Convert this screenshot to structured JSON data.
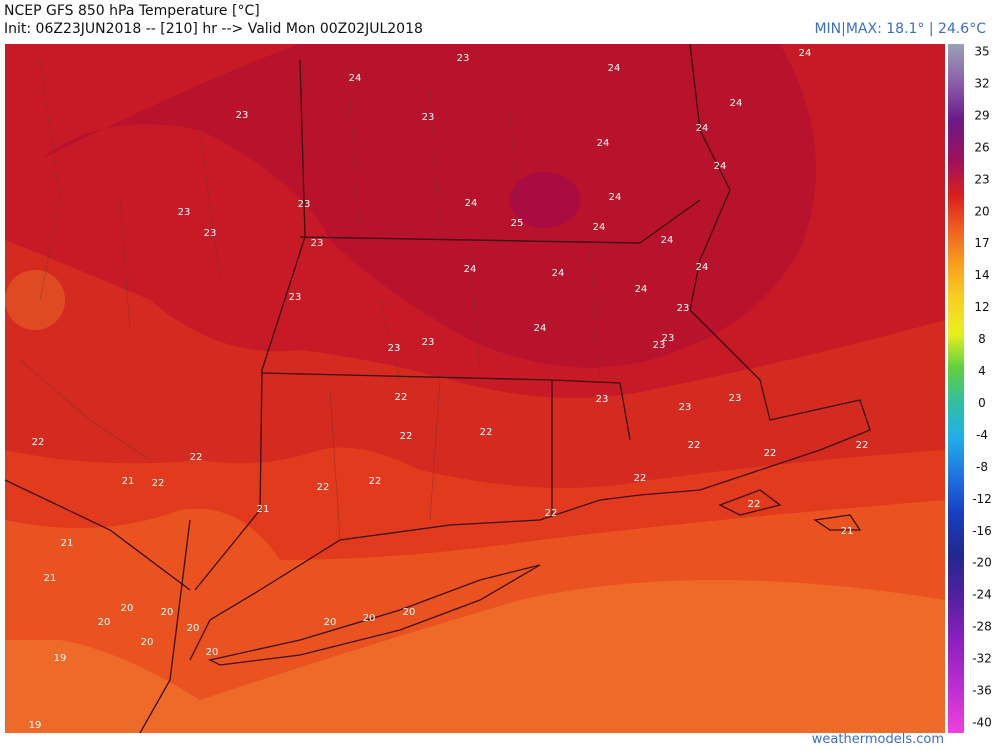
{
  "header": {
    "title": "NCEP GFS 850 hPa Temperature [°C]",
    "init": "Init: 06Z23JUN2018 -- [210] hr --> Valid Mon 00Z02JUL2018",
    "minmax": "MIN|MAX: 18.1° | 24.6°C"
  },
  "colorbar": {
    "ticks": [
      35,
      32,
      29,
      26,
      23,
      20,
      17,
      14,
      12,
      8,
      4,
      0,
      -4,
      -8,
      -12,
      -16,
      -20,
      -24,
      -28,
      -32,
      -36,
      -40
    ]
  },
  "map": {
    "labels": [
      "24",
      "23",
      "24",
      "24",
      "24",
      "23",
      "23",
      "24",
      "24",
      "24",
      "23",
      "23",
      "24",
      "24",
      "25",
      "23",
      "24",
      "24",
      "23",
      "24",
      "24",
      "24",
      "23",
      "24",
      "23",
      "24",
      "23",
      "23",
      "23",
      "23",
      "23",
      "22",
      "23",
      "23",
      "22",
      "22",
      "22",
      "22",
      "22",
      "22",
      "22",
      "21",
      "22",
      "22",
      "22",
      "22",
      "21",
      "22",
      "22",
      "21",
      "21",
      "21",
      "20",
      "20",
      "20",
      "20",
      "20",
      "20",
      "20",
      "20",
      "20",
      "19",
      "19"
    ]
  },
  "footer": {
    "site": "weathermodels.com"
  }
}
